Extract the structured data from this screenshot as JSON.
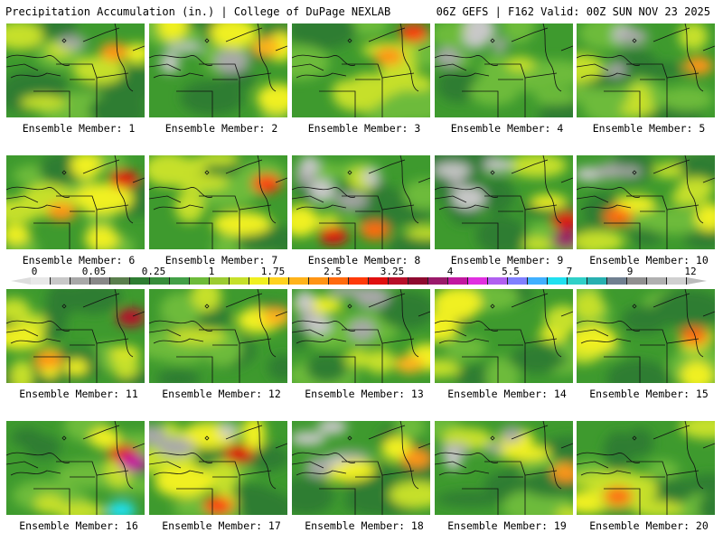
{
  "header": {
    "left": "Precipitation Accumulation (in.) | College of DuPage NEXLAB",
    "right": "06Z GEFS | F162 Valid: 00Z SUN NOV 23 2025"
  },
  "colorbar": {
    "labels": [
      "0",
      "0.05",
      "0.25",
      "1",
      "1.75",
      "2.5",
      "3.25",
      "4",
      "5.5",
      "7",
      "9",
      "12"
    ],
    "colors": [
      "#e8e8e8",
      "#c8c8c8",
      "#a8a8a8",
      "#888888",
      "#5a7f4d",
      "#2e7d32",
      "#388e3c",
      "#43a047",
      "#6dbb3a",
      "#9ccc32",
      "#c6e02a",
      "#f0f020",
      "#ffd21e",
      "#ffb31a",
      "#ff9414",
      "#ff6a0e",
      "#ff3a0a",
      "#e01010",
      "#b80f2a",
      "#8e0a30",
      "#9a1a6a",
      "#c218a0",
      "#e030e0",
      "#b060f0",
      "#8080ff",
      "#40b0ff",
      "#20e0f0",
      "#30d0c8",
      "#28b0b0",
      "#708090",
      "#909090",
      "#b0b0b0",
      "#d0d0d0"
    ]
  },
  "members": [
    {
      "caption": "Ensemble Member: 1",
      "intensity": 0.35,
      "gray": 0.1,
      "hotspots": [
        [
          "#ff9414",
          0.78,
          0.3
        ]
      ]
    },
    {
      "caption": "Ensemble Member: 2",
      "intensity": 0.3,
      "gray": 0.3,
      "hotspots": [
        [
          "#ffb31a",
          0.85,
          0.25
        ]
      ]
    },
    {
      "caption": "Ensemble Member: 3",
      "intensity": 0.5,
      "gray": 0.0,
      "hotspots": [
        [
          "#ff3a0a",
          0.88,
          0.1
        ],
        [
          "#ff9414",
          0.7,
          0.35
        ]
      ]
    },
    {
      "caption": "Ensemble Member: 4",
      "intensity": 0.15,
      "gray": 0.5,
      "hotspots": []
    },
    {
      "caption": "Ensemble Member: 5",
      "intensity": 0.3,
      "gray": 0.35,
      "hotspots": [
        [
          "#ff9414",
          0.88,
          0.45
        ]
      ]
    },
    {
      "caption": "Ensemble Member: 6",
      "intensity": 0.55,
      "gray": 0.0,
      "hotspots": [
        [
          "#e01010",
          0.85,
          0.25
        ],
        [
          "#ff9414",
          0.4,
          0.6
        ]
      ]
    },
    {
      "caption": "Ensemble Member: 7",
      "intensity": 0.4,
      "gray": 0.0,
      "hotspots": [
        [
          "#ff3a0a",
          0.85,
          0.3
        ]
      ]
    },
    {
      "caption": "Ensemble Member: 8",
      "intensity": 0.25,
      "gray": 0.45,
      "hotspots": [
        [
          "#e01010",
          0.3,
          0.85
        ],
        [
          "#ff6a0e",
          0.6,
          0.8
        ]
      ]
    },
    {
      "caption": "Ensemble Member: 9",
      "intensity": 0.2,
      "gray": 0.35,
      "hotspots": [
        [
          "#e01010",
          0.95,
          0.7
        ],
        [
          "#9a1a6a",
          0.95,
          0.9
        ]
      ]
    },
    {
      "caption": "Ensemble Member: 10",
      "intensity": 0.4,
      "gray": 0.25,
      "hotspots": [
        [
          "#ff6a0e",
          0.3,
          0.65
        ]
      ]
    },
    {
      "caption": "Ensemble Member: 11",
      "intensity": 0.6,
      "gray": 0.0,
      "hotspots": [
        [
          "#b80f2a",
          0.9,
          0.3
        ],
        [
          "#ff9414",
          0.3,
          0.75
        ]
      ]
    },
    {
      "caption": "Ensemble Member: 12",
      "intensity": 0.2,
      "gray": 0.0,
      "hotspots": [
        [
          "#ffb31a",
          0.92,
          0.3
        ]
      ]
    },
    {
      "caption": "Ensemble Member: 13",
      "intensity": 0.3,
      "gray": 0.55,
      "hotspots": [
        [
          "#ffb31a",
          0.85,
          0.8
        ]
      ]
    },
    {
      "caption": "Ensemble Member: 14",
      "intensity": 0.35,
      "gray": 0.0,
      "hotspots": []
    },
    {
      "caption": "Ensemble Member: 15",
      "intensity": 0.45,
      "gray": 0.0,
      "hotspots": [
        [
          "#ff6a0e",
          0.85,
          0.5
        ]
      ]
    },
    {
      "caption": "Ensemble Member: 16",
      "intensity": 0.3,
      "gray": 0.0,
      "hotspots": [
        [
          "#e01010",
          0.85,
          0.35
        ],
        [
          "#c218a0",
          0.92,
          0.45
        ],
        [
          "#20e0f0",
          0.83,
          0.95
        ]
      ]
    },
    {
      "caption": "Ensemble Member: 17",
      "intensity": 0.6,
      "gray": 0.3,
      "hotspots": [
        [
          "#e01010",
          0.65,
          0.35
        ],
        [
          "#ff3a0a",
          0.5,
          0.9
        ]
      ]
    },
    {
      "caption": "Ensemble Member: 18",
      "intensity": 0.2,
      "gray": 0.5,
      "hotspots": [
        [
          "#ff9414",
          0.9,
          0.4
        ]
      ]
    },
    {
      "caption": "Ensemble Member: 19",
      "intensity": 0.25,
      "gray": 0.4,
      "hotspots": [
        [
          "#ff9414",
          0.95,
          0.55
        ]
      ]
    },
    {
      "caption": "Ensemble Member: 20",
      "intensity": 0.55,
      "gray": 0.0,
      "hotspots": [
        [
          "#ff6a0e",
          0.3,
          0.8
        ]
      ]
    }
  ]
}
